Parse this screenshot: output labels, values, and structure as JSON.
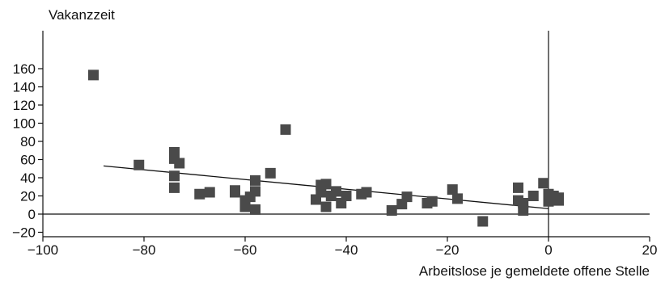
{
  "chart_data": {
    "type": "scatter",
    "title": "",
    "xlabel": "Arbeitslose je gemeldete offene Stelle",
    "ylabel": "Vakanzzeit",
    "xlim": [
      -100,
      20
    ],
    "ylim": [
      -20,
      165
    ],
    "x_ticks": [
      -100,
      -80,
      -60,
      -40,
      -20,
      0,
      20
    ],
    "y_ticks": [
      -20,
      0,
      20,
      40,
      60,
      80,
      100,
      120,
      140,
      160
    ],
    "x_tick_labels": [
      "−100",
      "−80",
      "−60",
      "−40",
      "−20",
      "0",
      "20"
    ],
    "y_tick_labels": [
      "−20",
      "0",
      "20",
      "40",
      "60",
      "80",
      "100",
      "120",
      "140",
      "160"
    ],
    "grid": false,
    "legend": "none",
    "marker_color": "#4a4a4a",
    "line_color": "#111111",
    "points": [
      {
        "x": -90,
        "y": 153
      },
      {
        "x": -81,
        "y": 54
      },
      {
        "x": -74,
        "y": 68
      },
      {
        "x": -74,
        "y": 61
      },
      {
        "x": -73,
        "y": 56
      },
      {
        "x": -74,
        "y": 42
      },
      {
        "x": -74,
        "y": 29
      },
      {
        "x": -69,
        "y": 22
      },
      {
        "x": -67,
        "y": 24
      },
      {
        "x": -62,
        "y": 26
      },
      {
        "x": -62,
        "y": 24
      },
      {
        "x": -60,
        "y": 15
      },
      {
        "x": -60,
        "y": 8
      },
      {
        "x": -59,
        "y": 19
      },
      {
        "x": -58,
        "y": 37
      },
      {
        "x": -58,
        "y": 25
      },
      {
        "x": -58,
        "y": 5
      },
      {
        "x": -55,
        "y": 45
      },
      {
        "x": -52,
        "y": 93
      },
      {
        "x": -46,
        "y": 16
      },
      {
        "x": -45,
        "y": 32
      },
      {
        "x": -45,
        "y": 24
      },
      {
        "x": -44,
        "y": 33
      },
      {
        "x": -44,
        "y": 8
      },
      {
        "x": -43,
        "y": 20
      },
      {
        "x": -42,
        "y": 25
      },
      {
        "x": -41,
        "y": 12
      },
      {
        "x": -40,
        "y": 20
      },
      {
        "x": -37,
        "y": 22
      },
      {
        "x": -36,
        "y": 24
      },
      {
        "x": -31,
        "y": 4
      },
      {
        "x": -29,
        "y": 11
      },
      {
        "x": -28,
        "y": 19
      },
      {
        "x": -24,
        "y": 12
      },
      {
        "x": -23,
        "y": 14
      },
      {
        "x": -19,
        "y": 27
      },
      {
        "x": -18,
        "y": 17
      },
      {
        "x": -13,
        "y": -8
      },
      {
        "x": -6,
        "y": 29
      },
      {
        "x": -6,
        "y": 15
      },
      {
        "x": -5,
        "y": 4
      },
      {
        "x": -5,
        "y": 12
      },
      {
        "x": -3,
        "y": 20
      },
      {
        "x": -1,
        "y": 34
      },
      {
        "x": 0,
        "y": 22
      },
      {
        "x": 0,
        "y": 14
      },
      {
        "x": 1,
        "y": 20
      },
      {
        "x": 2,
        "y": 15
      },
      {
        "x": 2,
        "y": 18
      }
    ],
    "regression_line": {
      "x1": -88,
      "y1": 53,
      "x2": 0,
      "y2": 6
    }
  }
}
